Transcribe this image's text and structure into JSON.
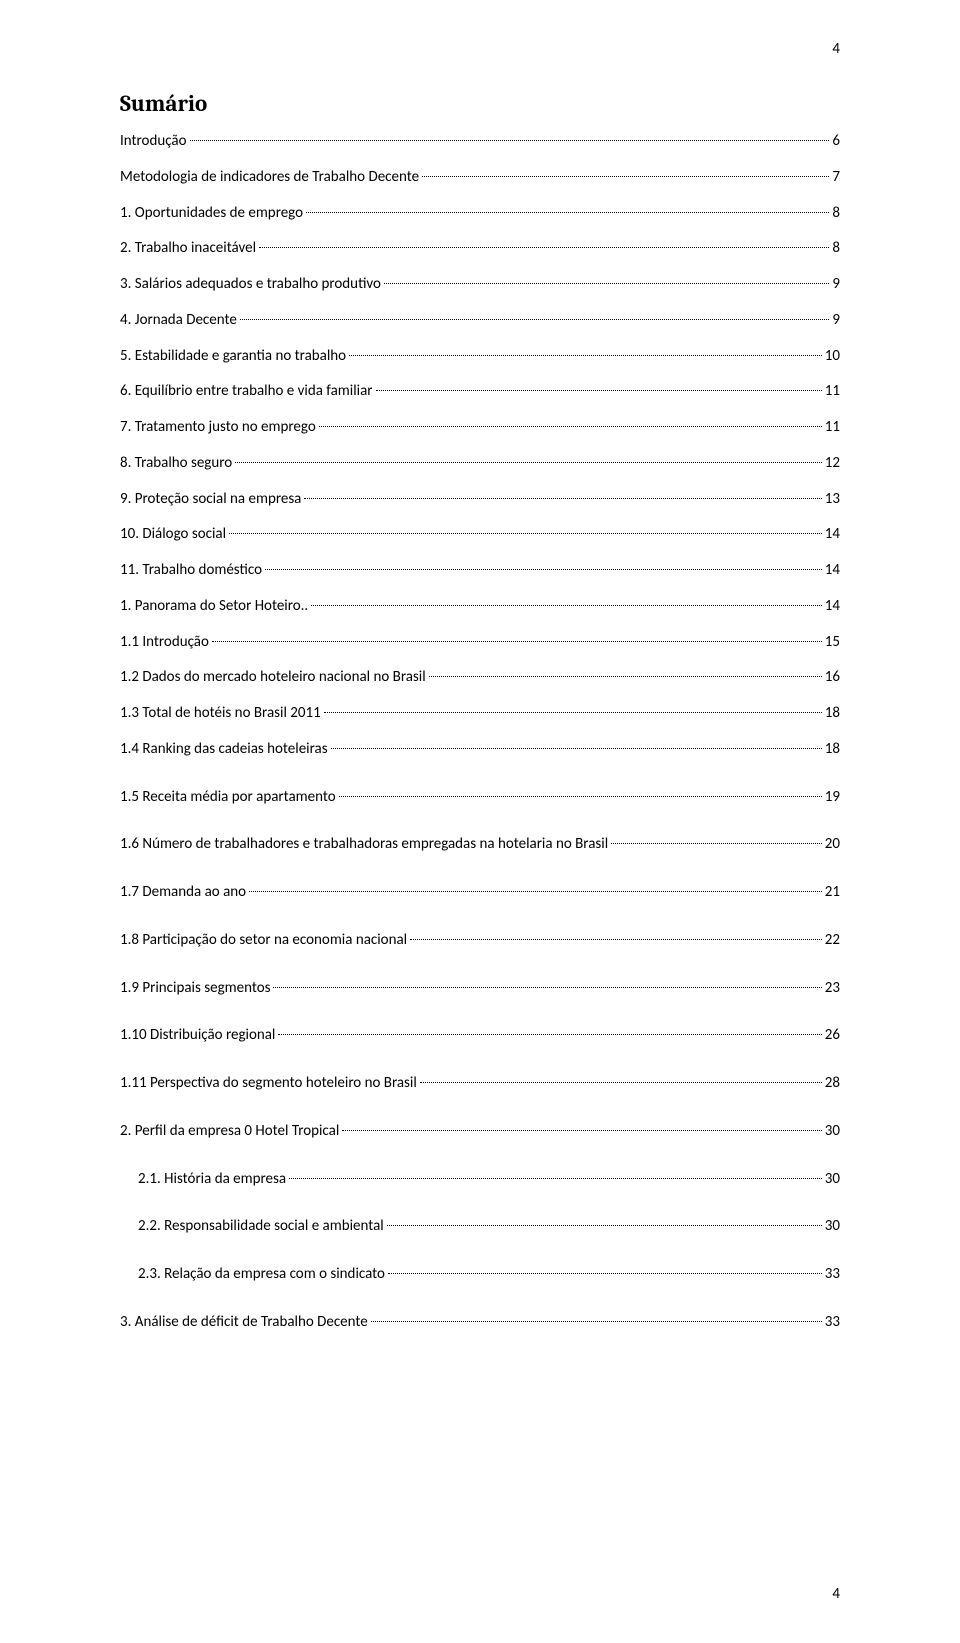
{
  "page_number_top": "4",
  "page_number_bottom": "4",
  "title": "Sumário",
  "text_color": "#000000",
  "background_color": "#ffffff",
  "title_fontsize": 23,
  "body_fontsize": 15,
  "toc": [
    {
      "label": "Introdução",
      "page": "6",
      "indent": 0,
      "extra_space": false
    },
    {
      "label": "Metodologia de indicadores de Trabalho Decente",
      "page": "7",
      "indent": 0,
      "extra_space": false
    },
    {
      "label": "1. Oportunidades de emprego",
      "page": "8",
      "indent": 0,
      "extra_space": false
    },
    {
      "label": "2. Trabalho inaceitável",
      "page": "8",
      "indent": 0,
      "extra_space": false
    },
    {
      "label": "3. Salários adequados e trabalho produtivo",
      "page": "9",
      "indent": 0,
      "extra_space": false
    },
    {
      "label": "4. Jornada Decente",
      "page": "9",
      "indent": 0,
      "extra_space": false
    },
    {
      "label": "5. Estabilidade e garantia no trabalho",
      "page": "10",
      "indent": 0,
      "extra_space": false
    },
    {
      "label": "6. Equilíbrio entre trabalho e vida familiar",
      "page": "11",
      "indent": 0,
      "extra_space": false
    },
    {
      "label": "7. Tratamento justo no emprego",
      "page": "11",
      "indent": 0,
      "extra_space": false
    },
    {
      "label": "8. Trabalho seguro",
      "page": "12",
      "indent": 0,
      "extra_space": false
    },
    {
      "label": "9. Proteção social na empresa",
      "page": "13",
      "indent": 0,
      "extra_space": false
    },
    {
      "label": "10. Diálogo social",
      "page": "14",
      "indent": 0,
      "extra_space": false
    },
    {
      "label": "11. Trabalho doméstico",
      "page": "14",
      "indent": 0,
      "extra_space": false
    },
    {
      "label": "1. Panorama do Setor Hoteiro.. ",
      "page": "14",
      "indent": 0,
      "extra_space": false
    },
    {
      "label": "1.1 Introdução",
      "page": "15",
      "indent": 0,
      "extra_space": false
    },
    {
      "label": "1.2 Dados do mercado hoteleiro nacional no Brasil",
      "page": "16",
      "indent": 0,
      "extra_space": false
    },
    {
      "label": "1.3 Total de hotéis no Brasil 2011",
      "page": "18",
      "indent": 0,
      "extra_space": false
    },
    {
      "label": "1.4 Ranking das cadeias hoteleiras",
      "page": "18",
      "indent": 0,
      "extra_space": true
    },
    {
      "label": "1.5 Receita média por apartamento",
      "page": "19",
      "indent": 0,
      "extra_space": true
    },
    {
      "label": "1.6 Número de trabalhadores e trabalhadoras empregadas na hotelaria no Brasil",
      "page": "20",
      "indent": 0,
      "extra_space": true
    },
    {
      "label": "1.7 Demanda ao ano",
      "page": "21",
      "indent": 0,
      "extra_space": true
    },
    {
      "label": "1.8 Participação do setor  na economia nacional",
      "page": "22",
      "indent": 0,
      "extra_space": true
    },
    {
      "label": "1.9 Principais segmentos",
      "page": "23",
      "indent": 0,
      "extra_space": true
    },
    {
      "label": "1.10 Distribuição regional",
      "page": "26",
      "indent": 0,
      "extra_space": true
    },
    {
      "label": "1.11 Perspectiva do segmento hoteleiro no Brasil",
      "page": "28",
      "indent": 0,
      "extra_space": true
    },
    {
      "label": "2. Perfil da empresa 0 Hotel Tropical",
      "page": "30",
      "indent": 0,
      "extra_space": true
    },
    {
      "label": "2.1. História da empresa",
      "page": "30",
      "indent": 1,
      "extra_space": true
    },
    {
      "label": "2.2. Responsabilidade social e ambiental",
      "page": "30",
      "indent": 1,
      "extra_space": true
    },
    {
      "label": "2.3. Relação da empresa com o sindicato",
      "page": "33",
      "indent": 1,
      "extra_space": true
    },
    {
      "label": "3. Análise de déficit de Trabalho Decente",
      "page": "33",
      "indent": 0,
      "extra_space": false
    }
  ]
}
